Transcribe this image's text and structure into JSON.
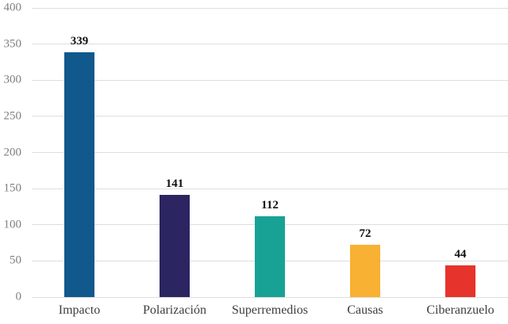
{
  "chart_data": {
    "type": "bar",
    "title": "",
    "xlabel": "",
    "ylabel": "",
    "categories": [
      "Impacto",
      "Polarización",
      "Superremedios",
      "Causas",
      "Ciberanzuelo"
    ],
    "values": [
      339,
      141,
      112,
      72,
      44
    ],
    "value_labels": [
      "339",
      "141",
      "112",
      "72",
      "44"
    ],
    "bar_colors": [
      "#11588c",
      "#2b2561",
      "#18a295",
      "#f8b133",
      "#e6332b"
    ],
    "ylim": [
      0,
      400
    ],
    "yticks": [
      0,
      50,
      100,
      150,
      200,
      250,
      300,
      350,
      400
    ],
    "ytick_labels": [
      "0",
      "50",
      "100",
      "150",
      "200",
      "250",
      "300",
      "350",
      "400"
    ],
    "grid": true,
    "legend": false
  },
  "style": {
    "background": "#ffffff",
    "grid_color": "#dedede",
    "ytick_label_color": "#7f7f7f",
    "category_label_color": "#3d3d3d",
    "value_label_color": "#111111"
  }
}
